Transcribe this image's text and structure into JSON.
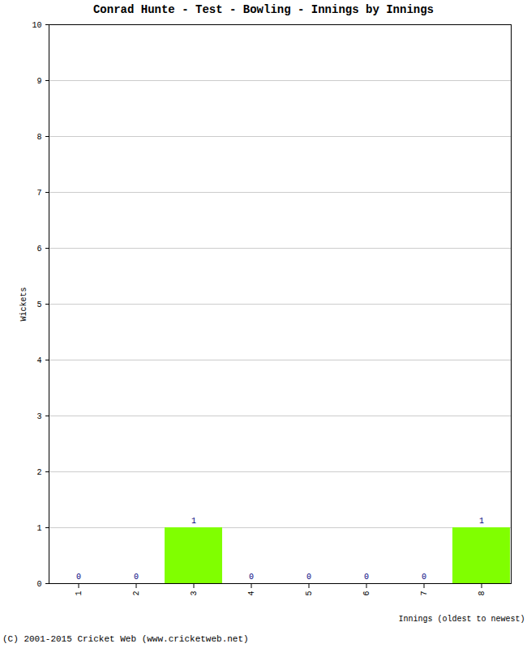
{
  "chart_data": {
    "type": "bar",
    "title": "Conrad Hunte - Test - Bowling - Innings by Innings",
    "x_label": "Innings (oldest to newest)",
    "y_label": "Wickets",
    "caption": "(C) 2001-2015 Cricket Web (www.cricketweb.net)",
    "categories": [
      "1",
      "2",
      "3",
      "4",
      "5",
      "6",
      "7",
      "8"
    ],
    "values": [
      0,
      0,
      1,
      0,
      0,
      0,
      0,
      1
    ],
    "color": "#80ff00",
    "ylim": [
      0,
      10
    ],
    "yticks": [
      0,
      1,
      2,
      3,
      4,
      5,
      6,
      7,
      8,
      9,
      10
    ],
    "grid": true,
    "data_labels": true
  }
}
